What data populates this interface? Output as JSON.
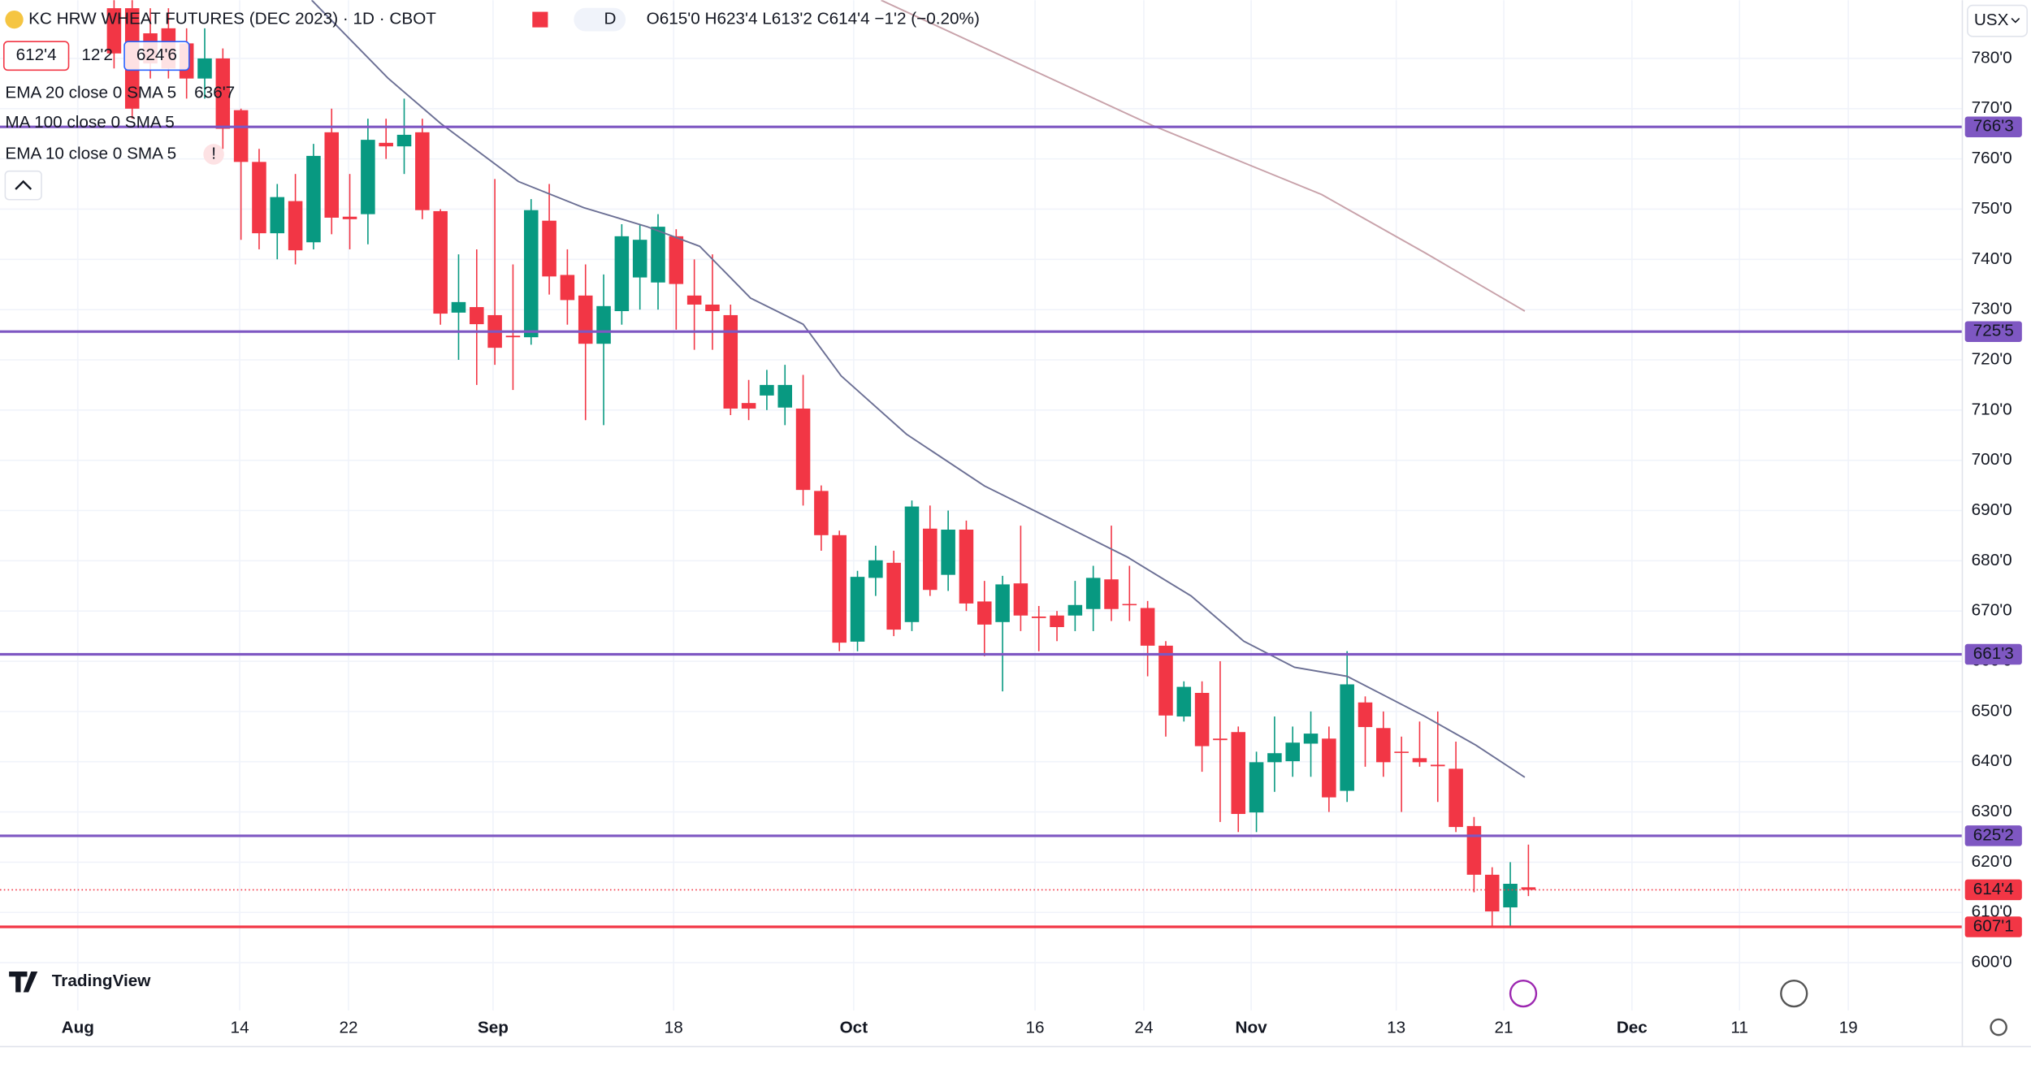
{
  "chart_data": {
    "type": "candlestick",
    "title": "KC HRW WHEAT FUTURES (DEC 2023) · 1D · CBOT",
    "interval_badge": "D",
    "ohlc_text": "O615'0 H623'4 L613'2 C614'4 −1'2 (−0.20%)",
    "bid": "612'4",
    "spread": "12'2",
    "ask": "624'6",
    "indicators": [
      {
        "label": "EMA 20 close 0 SMA 5",
        "value_text": "636'7"
      },
      {
        "label": "MA 100 close 0 SMA 5"
      },
      {
        "label": "EMA 10 close 0 SMA 5",
        "warning": "!"
      }
    ],
    "currency": "USX",
    "brand": "TradingView",
    "colors": {
      "up": "#089981",
      "down": "#f23645",
      "level": "#7e57c2",
      "ema": "#6b6f94",
      "ma": "#c8a2aa"
    },
    "open": [
      790,
      790,
      785,
      786,
      783,
      776,
      780,
      769.7,
      759.4,
      745.2,
      751.6,
      743.4,
      765.3,
      748.5,
      749,
      763.2,
      762.5,
      765.3,
      749.6,
      729.4,
      730.5,
      728.9,
      724.8,
      724.5,
      747.7,
      736.9,
      732.8,
      723.2,
      729.7,
      736.4,
      735.4,
      744.6,
      732.8,
      731,
      728.9,
      711.4,
      712.9,
      710.5,
      710.3,
      693.9,
      685.1,
      663.9,
      676.6,
      679.6,
      667.8,
      686.4,
      677.2,
      686.2,
      671.9,
      667.8,
      675.5,
      668.9,
      669.1,
      669.1,
      670.4,
      676.3,
      671.4,
      670.6,
      663.1,
      649,
      653.7,
      644.6,
      645.9,
      629.9,
      639.9,
      640.1,
      643.6,
      644.6,
      634.2,
      651.8,
      646.7,
      642,
      640.7,
      639.4,
      638.6,
      627.2,
      617.5,
      611,
      615
    ],
    "high": [
      792,
      792,
      790,
      790,
      786,
      786,
      782,
      770,
      762,
      755,
      757,
      763,
      770,
      757,
      768,
      768,
      772,
      768,
      750,
      741,
      742,
      756,
      739,
      752,
      755,
      742,
      739,
      737,
      747,
      747,
      749,
      746,
      740,
      741,
      731,
      716,
      718,
      719,
      717,
      695,
      686,
      678,
      683,
      682,
      692,
      691,
      690,
      688,
      676,
      677,
      687,
      671,
      670,
      676,
      679,
      687,
      679,
      672,
      664,
      656,
      656,
      660,
      647,
      642,
      649,
      647,
      650,
      647,
      662,
      653,
      650,
      645,
      648,
      650,
      644,
      629,
      619,
      620,
      623.5
    ],
    "low": [
      778,
      768,
      776,
      776,
      772,
      772,
      762,
      743.9,
      742,
      740,
      739,
      742,
      745,
      742,
      743,
      760,
      757,
      748,
      727,
      720,
      715,
      719,
      714,
      723,
      733,
      727,
      708,
      707,
      727,
      730,
      730,
      726,
      722,
      722,
      709,
      708,
      710,
      707,
      691,
      682,
      662,
      662,
      673,
      665,
      666,
      673,
      674,
      670,
      661,
      654,
      666,
      662,
      664,
      666,
      666,
      668,
      668,
      657,
      645,
      648,
      638,
      628,
      626,
      626,
      634,
      637,
      637,
      630,
      632,
      639,
      637,
      630,
      639,
      632,
      626,
      614,
      607,
      607,
      613.25
    ],
    "close": [
      781,
      770,
      779,
      778,
      776,
      780,
      766,
      759.4,
      745.2,
      752.4,
      741.8,
      760.6,
      748.3,
      748,
      763.8,
      762.5,
      764.8,
      749.8,
      729.2,
      731.5,
      727.1,
      722.4,
      724.5,
      749.8,
      736.6,
      731.9,
      723.2,
      730.7,
      744.6,
      743.9,
      746.5,
      735.1,
      731,
      729.7,
      710.3,
      710.3,
      715,
      715,
      694.1,
      685.1,
      663.7,
      676.8,
      680.1,
      666.3,
      690.8,
      674.2,
      686.2,
      671.5,
      667.3,
      675.3,
      669.1,
      668.6,
      666.8,
      671.2,
      676.6,
      670.4,
      671.2,
      663.1,
      649.2,
      654.9,
      643.1,
      644.3,
      629.6,
      639.9,
      641.7,
      643.8,
      645.6,
      632.9,
      655.4,
      646.9,
      639.9,
      641.8,
      639.9,
      639.1,
      627,
      617.5,
      610.2,
      615.7,
      614.5
    ],
    "series": [
      {
        "name": "EMA 20",
        "x": [
          10.9,
          15.1,
          18,
          22.3,
          25.9,
          29.4,
          32.3,
          35.1,
          38,
          40.1,
          43.7,
          48,
          52.3,
          55.9,
          59.4,
          62.3,
          65.1,
          68,
          72.3,
          75.1,
          77.8
        ],
        "values": [
          791.6,
          776.1,
          767.1,
          755.5,
          750.3,
          746.5,
          742.6,
          732.3,
          727.1,
          716.8,
          705.2,
          694.9,
          687.2,
          680.7,
          673,
          664,
          658.8,
          657,
          649,
          643.3,
          636.9
        ]
      },
      {
        "name": "MA 100",
        "x": [
          42.3,
          57.3,
          66.6,
          72.3,
          77.8
        ],
        "values": [
          791.6,
          766.6,
          752.9,
          741.3,
          729.7
        ]
      }
    ],
    "levels": [
      {
        "value": 766.375,
        "label": "766'3"
      },
      {
        "value": 725.625,
        "label": "725'5"
      },
      {
        "value": 661.375,
        "label": "661'3"
      },
      {
        "value": 625.25,
        "label": "625'2"
      },
      {
        "value": 607.125,
        "label": "607'1",
        "color": "#f23645"
      }
    ],
    "last_price": {
      "value": 614.5,
      "label": "614'4"
    },
    "xlim": [
      -6.29,
      101.93
    ],
    "xticks": [
      {
        "value": -2,
        "label": "Aug"
      },
      {
        "value": 6.93,
        "label": "14"
      },
      {
        "value": 12.93,
        "label": "22"
      },
      {
        "value": 20.9,
        "label": "Sep"
      },
      {
        "value": 30.86,
        "label": "18"
      },
      {
        "value": 40.79,
        "label": "Oct"
      },
      {
        "value": 50.79,
        "label": "16"
      },
      {
        "value": 56.79,
        "label": "24"
      },
      {
        "value": 62.71,
        "label": "Nov"
      },
      {
        "value": 70.71,
        "label": "13"
      },
      {
        "value": 76.64,
        "label": "21"
      },
      {
        "value": 83.71,
        "label": "Dec"
      },
      {
        "value": 89.64,
        "label": "11"
      },
      {
        "value": 95.64,
        "label": "19"
      }
    ],
    "ylim": [
      590.5,
      791.6
    ],
    "yticks": [
      {
        "value": 600,
        "label": "600'0"
      },
      {
        "value": 610,
        "label": "610'0"
      },
      {
        "value": 620,
        "label": "620'0"
      },
      {
        "value": 630,
        "label": "630'0"
      },
      {
        "value": 640,
        "label": "640'0"
      },
      {
        "value": 650,
        "label": "650'0"
      },
      {
        "value": 660,
        "label": "660'0"
      },
      {
        "value": 670,
        "label": "670'0"
      },
      {
        "value": 680,
        "label": "680'0"
      },
      {
        "value": 690,
        "label": "690'0"
      },
      {
        "value": 700,
        "label": "700'0"
      },
      {
        "value": 710,
        "label": "710'0"
      },
      {
        "value": 720,
        "label": "720'0"
      },
      {
        "value": 730,
        "label": "730'0"
      },
      {
        "value": 740,
        "label": "740'0"
      },
      {
        "value": 750,
        "label": "750'0"
      },
      {
        "value": 760,
        "label": "760'0"
      },
      {
        "value": 770,
        "label": "770'0"
      },
      {
        "value": 780,
        "label": "780'0"
      }
    ],
    "grid": true
  }
}
